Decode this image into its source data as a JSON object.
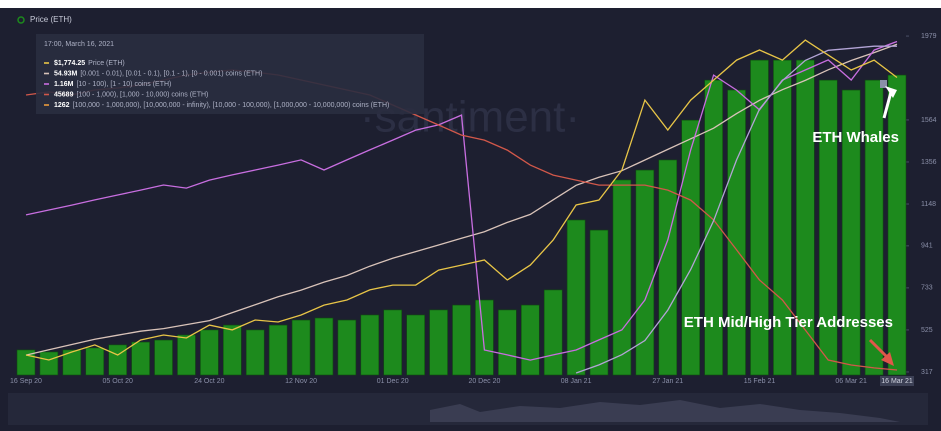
{
  "chart_data": {
    "type": "combo",
    "legend_title": "Price (ETH)",
    "watermark": "·santiment·",
    "categories": [
      "16 Sep 20",
      null,
      null,
      null,
      "05 Oct 20",
      null,
      null,
      null,
      "24 Oct 20",
      null,
      null,
      null,
      "12 Nov 20",
      null,
      null,
      null,
      "01 Dec 20",
      null,
      null,
      null,
      "20 Dec 20",
      null,
      null,
      null,
      "08 Jan 21",
      null,
      null,
      null,
      "27 Jan 21",
      null,
      null,
      null,
      "15 Feb 21",
      null,
      null,
      null,
      "06 Mar 21",
      null,
      "16 Mar 21"
    ],
    "ylim": [
      302,
      2009
    ],
    "yticks": [
      317,
      525,
      733,
      941,
      1148,
      1356,
      1564,
      1979
    ],
    "series": [
      {
        "name": "Price (ETH)",
        "type": "bar",
        "color": "#1d8a1d",
        "values": [
          426,
          416,
          426,
          436,
          451,
          465,
          475,
          500,
          525,
          549,
          525,
          549,
          574,
          584,
          574,
          599,
          624,
          599,
          624,
          648,
          673,
          624,
          648,
          723,
          1069,
          1019,
          1267,
          1316,
          1366,
          1563,
          1761,
          1712,
          1860,
          1860,
          1860,
          1761,
          1712,
          1761,
          1786
        ]
      },
      {
        "type": "line",
        "color": "#d9c3b9",
        "ylim": [
          30,
          56
        ],
        "values": [
          31.5,
          31.9,
          32.3,
          32.7,
          33.0,
          33.3,
          33.5,
          33.8,
          34.1,
          34.7,
          35.3,
          35.9,
          36.4,
          37.0,
          37.5,
          38.2,
          38.8,
          39.3,
          39.8,
          40.3,
          40.8,
          41.5,
          42.1,
          43.2,
          44.3,
          44.9,
          45.4,
          46.2,
          47.0,
          47.8,
          48.6,
          49.7,
          50.7,
          51.5,
          52.2,
          53.0,
          53.7,
          54.3,
          54.93
        ]
      },
      {
        "type": "line",
        "color": "#c86ee0",
        "ylim": [
          0,
          1.2
        ],
        "values": [
          0.557,
          0.574,
          0.591,
          0.609,
          0.626,
          0.643,
          0.661,
          0.65,
          0.678,
          0.696,
          0.713,
          0.73,
          0.748,
          0.713,
          0.748,
          0.783,
          0.817,
          0.852,
          0.87,
          0.904,
          0.087,
          0.07,
          0.052,
          0.07,
          0.087,
          0.122,
          0.157,
          0.261,
          0.47,
          0.783,
          1.043,
          0.991,
          0.922,
          1.026,
          1.061,
          1.096,
          1.026,
          1.13,
          1.16
        ]
      },
      {
        "type": "line",
        "color": "#d2584a",
        "ylim": [
          45660,
          47660
        ],
        "values": [
          47283,
          47301,
          47283,
          47312,
          47324,
          47341,
          47370,
          47399,
          47416,
          47428,
          47416,
          47399,
          47370,
          47341,
          47312,
          47283,
          47225,
          47167,
          47109,
          47051,
          47022,
          46964,
          46877,
          46819,
          46790,
          46761,
          46761,
          46761,
          46732,
          46674,
          46559,
          46385,
          46211,
          46095,
          45921,
          45747,
          45718,
          45701,
          45689
        ]
      },
      {
        "type": "line",
        "color": "#b3a4d6",
        "ylim": [
          1100,
          1270
        ],
        "values": [
          null,
          null,
          null,
          null,
          null,
          null,
          null,
          null,
          null,
          null,
          null,
          null,
          null,
          null,
          null,
          null,
          null,
          null,
          null,
          null,
          null,
          null,
          null,
          null,
          1101,
          1105,
          1110,
          1117,
          1132,
          1152,
          1176,
          1206,
          1231,
          1245,
          1255,
          1260,
          1261,
          1262,
          1262
        ]
      },
      {
        "type": "line",
        "color": "#e8c547",
        "values": [
          401,
          376,
          416,
          451,
          401,
          475,
          500,
          485,
          549,
          525,
          574,
          564,
          599,
          648,
          673,
          723,
          747,
          747,
          821,
          846,
          871,
          772,
          846,
          970,
          1143,
          1168,
          1316,
          1662,
          1514,
          1662,
          1761,
          1860,
          1910,
          1860,
          1959,
          1885,
          1811,
          1860,
          1774
        ]
      }
    ],
    "tooltip": {
      "title": "17:00, March 16, 2021",
      "rows": [
        {
          "value": "$1,774.25",
          "label": "Price (ETH)",
          "color": "#e8c547"
        },
        {
          "value": "54.93M",
          "label": "[0.001 - 0.01), [0.01 - 0.1), [0.1 - 1), [0 - 0.001) coins (ETH)",
          "color": "#d9c3b9"
        },
        {
          "value": "1.16M",
          "label": "[10 - 100), [1 - 10) coins (ETH)",
          "color": "#c86ee0"
        },
        {
          "value": "45689",
          "label": "[100 - 1,000), [1,000 - 10,000) coins (ETH)",
          "color": "#d2584a"
        },
        {
          "value": "1262",
          "label": "[100,000 - 1,000,000), [10,000,000 - infinity), [10,000 - 100,000), [1,000,000 - 10,000,000) coins (ETH)",
          "color": "#e89a3c"
        }
      ]
    },
    "annotations": [
      "ETH Whales",
      "ETH Mid/High Tier Addresses"
    ]
  }
}
